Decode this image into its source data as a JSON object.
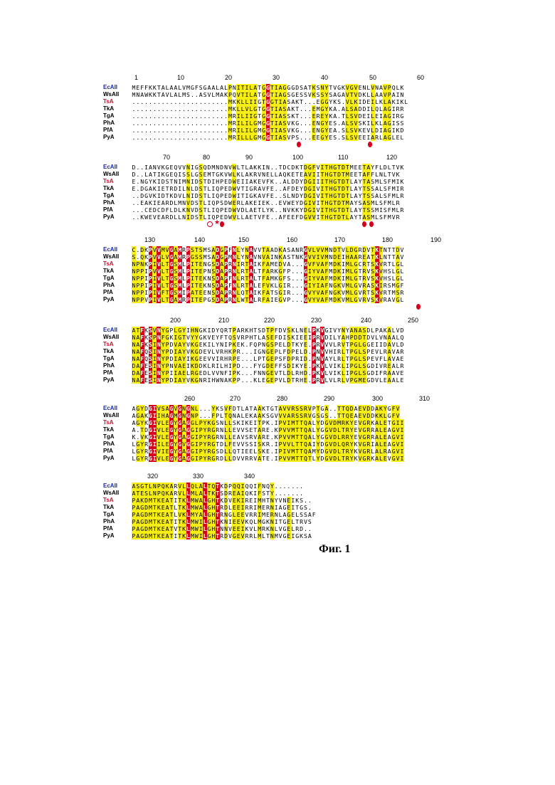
{
  "figure_caption": "Фиг. 1",
  "colors": {
    "identical": "#d6001c",
    "similar": "#f7ef14",
    "special": "#22c42a",
    "blue_label": "#1a2aa8",
    "red_label": "#c8102e"
  },
  "blocks": [
    {
      "ruler": [
        "1",
        "10",
        "20",
        "30",
        "40",
        "50",
        "60"
      ],
      "rows": [
        {
          "name": "EcAII",
          "seq": "MEFFKKTALAALVMGFSGAALALPNITILATGGTIAGGGDSATKSNYTVGKVGVENLVNAVPQLK"
        },
        {
          "name": "WsAII",
          "seq": "MNAWKKTAVLALMS..ASVLMAKPQVTILATGGTIAGSGESSVKSSYSAGAVTVDKLLAAVPAIN"
        },
        {
          "name": "TsA",
          "seq": ".......................MKKLLIIGTGGTIASAKT...EGGYKS.VLKIDEILKLAKIKL"
        },
        {
          "name": "TkA",
          "seq": ".......................MKLLVLGTGGTIASAKT...EMGYKA.ALSADDILQLAGIRR"
        },
        {
          "name": "TgA",
          "seq": ".......................MRILIIGTGGTIASSKT...EREYKA.TLSVDEILEIAGIRG"
        },
        {
          "name": "PhA",
          "seq": ".......................MRILILGMGGTIASVKG...ENGYES.ALSVSKILKLAGISS"
        },
        {
          "name": "PfA",
          "seq": ".......................MRILILGMGGTIASVKG...ENGYEA.SLSVKEVLDIAGIKD"
        },
        {
          "name": "PyA",
          "seq": ".......................MRILLLGMGGTIASVPS...EEGYES.SLSVEEIARLAGLEL"
        }
      ],
      "marks": [
        "●",
        "●"
      ]
    },
    {
      "ruler": [
        "70",
        "80",
        "90",
        "100",
        "110",
        "120"
      ],
      "rows": [
        {
          "name": "EcAII",
          "seq": "D..IANVKGEQVVNIGSQDMNDNVWLTLAKKIN..TDCDKTDGFVITHGTDTMEETAYFLDLTVK"
        },
        {
          "name": "WsAII",
          "seq": "D..LATIKGEQISSLGSEMTGKVWLKLAKRVNELLAQKETEAVIITHGTDTMEETAFFLNLTVK"
        },
        {
          "name": "TsA",
          "seq": "E.NGYKIDSTNIMNIDSTDIHPEDWEIIAKEVFK..ALDDYDGIIITHGTDTLAYTASMLSFMIK"
        },
        {
          "name": "TkA",
          "seq": "E.DGAKIETRDILNLDSTLIQPEDWVTIGRAVFE..AFDEYDGIVITHGTDTLAYTSSALSFMIR"
        },
        {
          "name": "TgA",
          "seq": "..DGVKIDTKDVLNIDSTLIQPEDWITIGKAVFE..SLNDYDGIVITHGTDTLAYTSSALSFMLR"
        },
        {
          "name": "PhA",
          "seq": "..EAKIEARDLMNVDSTLIQPSDWERLAKEIEK..EVWEYDGIVITHGTDTMAYSASMLSFMLR"
        },
        {
          "name": "PfA",
          "seq": "...CEDCDFLDLKNVDSTLIQPEDWVDLAETLYK..NVKKYDGIVITHGTDTLAYTSSMISFMLR"
        },
        {
          "name": "PyA",
          "seq": "..KWEVEARDLLNIDSTLIQPEDWVLLAETVFE..AFEEFDGVVITHGTDTLAYTASMLSFMVR"
        }
      ],
      "marks": [
        "○",
        "★",
        "●",
        "●",
        "●"
      ]
    },
    {
      "ruler": [
        "130",
        "140",
        "150",
        "160",
        "170",
        "180",
        "190"
      ],
      "rows": [
        {
          "name": "EcAII",
          "seq": "C.DKPVVMVGAMRPSTSMSADGPFNLYNAVVTAADKASANRGVLVVMNDTVLDGRDVTKTNTTDV"
        },
        {
          "name": "WsAII",
          "seq": "S.QKPVVLVGAMRPGSSMSADGPMNLYNAVNVAINKASTNKGVVIVMNDEIHAAREATKLNTTAV"
        },
        {
          "name": "TsA",
          "seq": "NPNKPIVLTGSMLPITENGSDAPRNIRTAIKFAMEDVA...GVFVAFMDKIMLGCRTSKVRTLGL"
        },
        {
          "name": "TkA",
          "seq": "NPPIPVVLTGSMLPITEPNSDAPRNLRTALTFARKGFP...GIYVAFMDKIMLGTRVSKVHSLGL"
        },
        {
          "name": "TgA",
          "seq": "NPPIPIVLTGSMLPITEKNSDAPFNLRTALTFAMKGFS...GIYVAFMDKIMLGTRVSKVHSLGL"
        },
        {
          "name": "PhA",
          "seq": "NPPIPIVLTGSMLPITEKNSDAPFNLRTALEFVKLGIR...GIYIAFNGKVMLGVRASKIRSMGF"
        },
        {
          "name": "PfA",
          "seq": "NPPIPIVFTGSMIPATEENSDAPRNLQTAIKFATSGIR...GVYVAFNGKVMLGVRTSKVRTMSR"
        },
        {
          "name": "PyA",
          "seq": "NPPVPIVLTGAMRPITEPGSDAPRNLWTALRFAIEGVP...GVYVAFMDKVMLGVRVSKVRAVGL"
        }
      ],
      "marks": [
        "●"
      ]
    },
    {
      "ruler": [
        "200",
        "210",
        "220",
        "230",
        "240",
        "250"
      ],
      "rows": [
        {
          "name": "EcAII",
          "seq": "ATFKSVNYGPLGYIHNGKIDYQRTPARKHTSDTPFDVSKLNELPKVGIVYNYANASDLPAKALVD"
        },
        {
          "name": "WsAII",
          "seq": "NAFKSPNFGKIGTVYYGKVEYFTQSVRPHTLASEFDISKIEEIPRVDILYAHPDDTDVLVNAALQ"
        },
        {
          "name": "TsA",
          "seq": "NAFKSINYPDVAYVKGEKILYNIPKEK.FQPNGSPELDTKYE.PRVVVLRVTPGLGGEIIDAVLD"
        },
        {
          "name": "TkA",
          "seq": "NAFQSINYPDIAYVKGDEVLVRHKPR...IGNGEPLFDPELD.PNVVHIRLTPGLSPEVLRAVAR"
        },
        {
          "name": "TgA",
          "seq": "NAFQSINYPDIAYIKGEEVVIRHRPE...LPTGEPSFDPRID.PNVAYLRLTPGLSPEVFLAVAE"
        },
        {
          "name": "PhA",
          "seq": "DAFESINYPNVAEIKDDKLRILHIPD...FYGDEFFSDIKYE.PKVLVIKLIPGLSGDIVREALR"
        },
        {
          "name": "PfA",
          "seq": "DAFESINYPIIAELRGEDLVVNFIPK...FNNGEVTLDLRHD.PKVLVIKLIPGLSGDIFRAAVE"
        },
        {
          "name": "PyA",
          "seq": "NAFESINYPDIAYVKGNRIHWNAKPP...KLEGEPVLDTRHE.PRVLVLRLVPGMEGDVLEAALE"
        }
      ],
      "marks": []
    },
    {
      "ruler": [
        "260",
        "270",
        "280",
        "290",
        "300",
        "310"
      ],
      "rows": [
        {
          "name": "EcAII",
          "seq": "AGYDGIVSAGVGNGNL...YKSVFDTLATAAKTGTAVVRSSRVPTGA..TTQDAEVDDAKYGFV"
        },
        {
          "name": "WsAII",
          "seq": "AGAKGIIHAGMGNGNP...FPLTQNALEKAAKSGVVVARSSRVGSGS..TTQEAEVDDKKLGFV"
        },
        {
          "name": "TsA",
          "seq": "AGYKGIVLEGYGAGGLPYKGSNLLSKIKEITPK.IPVIMTTQALYDGVDMRKYEVGRKALETGII"
        },
        {
          "name": "TkA",
          "seq": "A.TDGIVLEGYGAGGIPYRGRNLLEVVSETARE.KPVVMTTQALYGGVDLTRYEVGRRALEAGVI"
        },
        {
          "name": "TgA",
          "seq": "K.VKGIVLEGYGAGGIPYRGRNLLEAVSRVARE.KPVVMTTQALYGGVDLRRYEVGRRALEAGVI"
        },
        {
          "name": "PhA",
          "seq": "LGYRGIILEGYGVGGIPYRGTDLFEVVSSISKR.IPVVLTTQAIYDGVDLQRYKVGRIALEAGVI"
        },
        {
          "name": "PfA",
          "seq": "LGYRGIVIEGYGAGGIPYRGSDLLQTIEELSKE.IPIVMTTQAMYDGVDLTRYKVGRLALRAGVI"
        },
        {
          "name": "PyA",
          "seq": "LGYRGIVLEGYGAGGIPYRGRDLLDVVRRVATE.IPVVMTTQTLYDGVDLTRYKVGRKALEVGVI"
        }
      ],
      "marks": []
    },
    {
      "ruler": [
        "320",
        "330",
        "340"
      ],
      "rows": [
        {
          "name": "EcAII",
          "seq": "ASGTLNPQKARVLLQLALTQTKDPQQIQQIFNQY.......  "
        },
        {
          "name": "WsAII",
          "seq": "ATESLNPQKARVLLMLALTKTSDREAIQKIFSTY.......  "
        },
        {
          "name": "TsA",
          "seq": "PAKDMTKEATITKLMWALGHTKDVEKIREIMHTNYVNEIKS.."
        },
        {
          "name": "TkA",
          "seq": "PAGDMTKEATLTKLMWALGHTRDLEEIRRIMERNIAGEITGS."
        },
        {
          "name": "TgA",
          "seq": "PAGDMTKEATLVKLMYALGHTRNGLEEVRRIMERNLAGELSSAF"
        },
        {
          "name": "PhA",
          "seq": "PAGDMTKEATITKLMWILGHTKNIEEVKQLMGKNITGELTRVS"
        },
        {
          "name": "PfA",
          "seq": "PAGDMTKEATVTKLMWILGHTNNVEEIKVLMRKNLVGELRD.."
        },
        {
          "name": "PyA",
          "seq": "PAGDMTKEATITKLMWILGHTRDVGEVRRLMLTNMVGEIGKSA"
        }
      ],
      "marks": []
    }
  ]
}
